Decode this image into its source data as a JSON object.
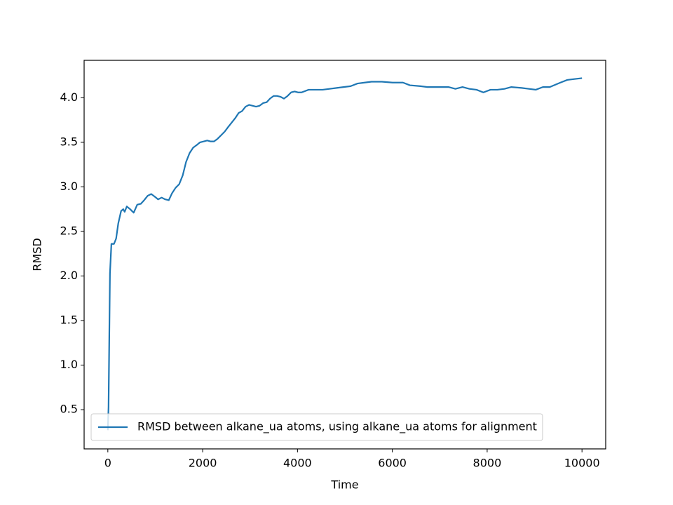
{
  "chart_data": {
    "type": "line",
    "xlabel": "Time",
    "ylabel": "RMSD",
    "x": [
      0,
      15,
      45,
      75,
      130,
      175,
      220,
      280,
      325,
      355,
      400,
      470,
      545,
      620,
      695,
      765,
      840,
      915,
      990,
      1060,
      1135,
      1210,
      1285,
      1355,
      1430,
      1505,
      1580,
      1650,
      1725,
      1800,
      1875,
      1945,
      2020,
      2095,
      2170,
      2240,
      2315,
      2390,
      2465,
      2535,
      2610,
      2685,
      2760,
      2830,
      2905,
      2980,
      3055,
      3125,
      3200,
      3275,
      3350,
      3420,
      3495,
      3570,
      3645,
      3715,
      3790,
      3865,
      3940,
      4010,
      4085,
      4235,
      4380,
      4530,
      4675,
      4825,
      4970,
      5120,
      5265,
      5415,
      5560,
      5780,
      6005,
      6225,
      6370,
      6595,
      6740,
      6960,
      7185,
      7330,
      7480,
      7625,
      7775,
      7920,
      8070,
      8215,
      8365,
      8510,
      8730,
      8880,
      9025,
      9175,
      9320,
      9545,
      9690,
      9840,
      10000
    ],
    "series": [
      {
        "name": "RMSD between alkane_ua atoms, using alkane_ua atoms for alignment",
        "color": "#1f77b4",
        "values": [
          0.27,
          0.53,
          2.03,
          2.36,
          2.36,
          2.42,
          2.59,
          2.73,
          2.75,
          2.72,
          2.78,
          2.75,
          2.71,
          2.8,
          2.81,
          2.85,
          2.9,
          2.92,
          2.89,
          2.86,
          2.88,
          2.86,
          2.85,
          2.93,
          2.99,
          3.03,
          3.13,
          3.28,
          3.38,
          3.44,
          3.47,
          3.5,
          3.51,
          3.52,
          3.51,
          3.51,
          3.54,
          3.58,
          3.62,
          3.67,
          3.72,
          3.77,
          3.83,
          3.85,
          3.9,
          3.92,
          3.91,
          3.9,
          3.91,
          3.94,
          3.95,
          3.99,
          4.02,
          4.02,
          4.01,
          3.99,
          4.02,
          4.06,
          4.07,
          4.06,
          4.06,
          4.09,
          4.09,
          4.09,
          4.1,
          4.11,
          4.12,
          4.13,
          4.16,
          4.17,
          4.18,
          4.18,
          4.17,
          4.17,
          4.14,
          4.13,
          4.12,
          4.12,
          4.12,
          4.1,
          4.12,
          4.1,
          4.09,
          4.06,
          4.09,
          4.09,
          4.1,
          4.12,
          4.11,
          4.1,
          4.09,
          4.12,
          4.12,
          4.17,
          4.2,
          4.21,
          4.22
        ]
      }
    ],
    "xlim": [
      -500,
      10500
    ],
    "xticks": [
      0,
      2000,
      4000,
      6000,
      8000,
      10000
    ],
    "ylim": [
      0.06,
      4.42
    ],
    "yticks": [
      0.5,
      {
        "value": 1.0,
        "label": "1.0"
      },
      1.5,
      {
        "value": 2.0,
        "label": "2.0"
      },
      2.5,
      {
        "value": 3.0,
        "label": "3.0"
      },
      3.5,
      {
        "value": 4.0,
        "label": "4.0"
      }
    ],
    "legend": "lower left"
  }
}
